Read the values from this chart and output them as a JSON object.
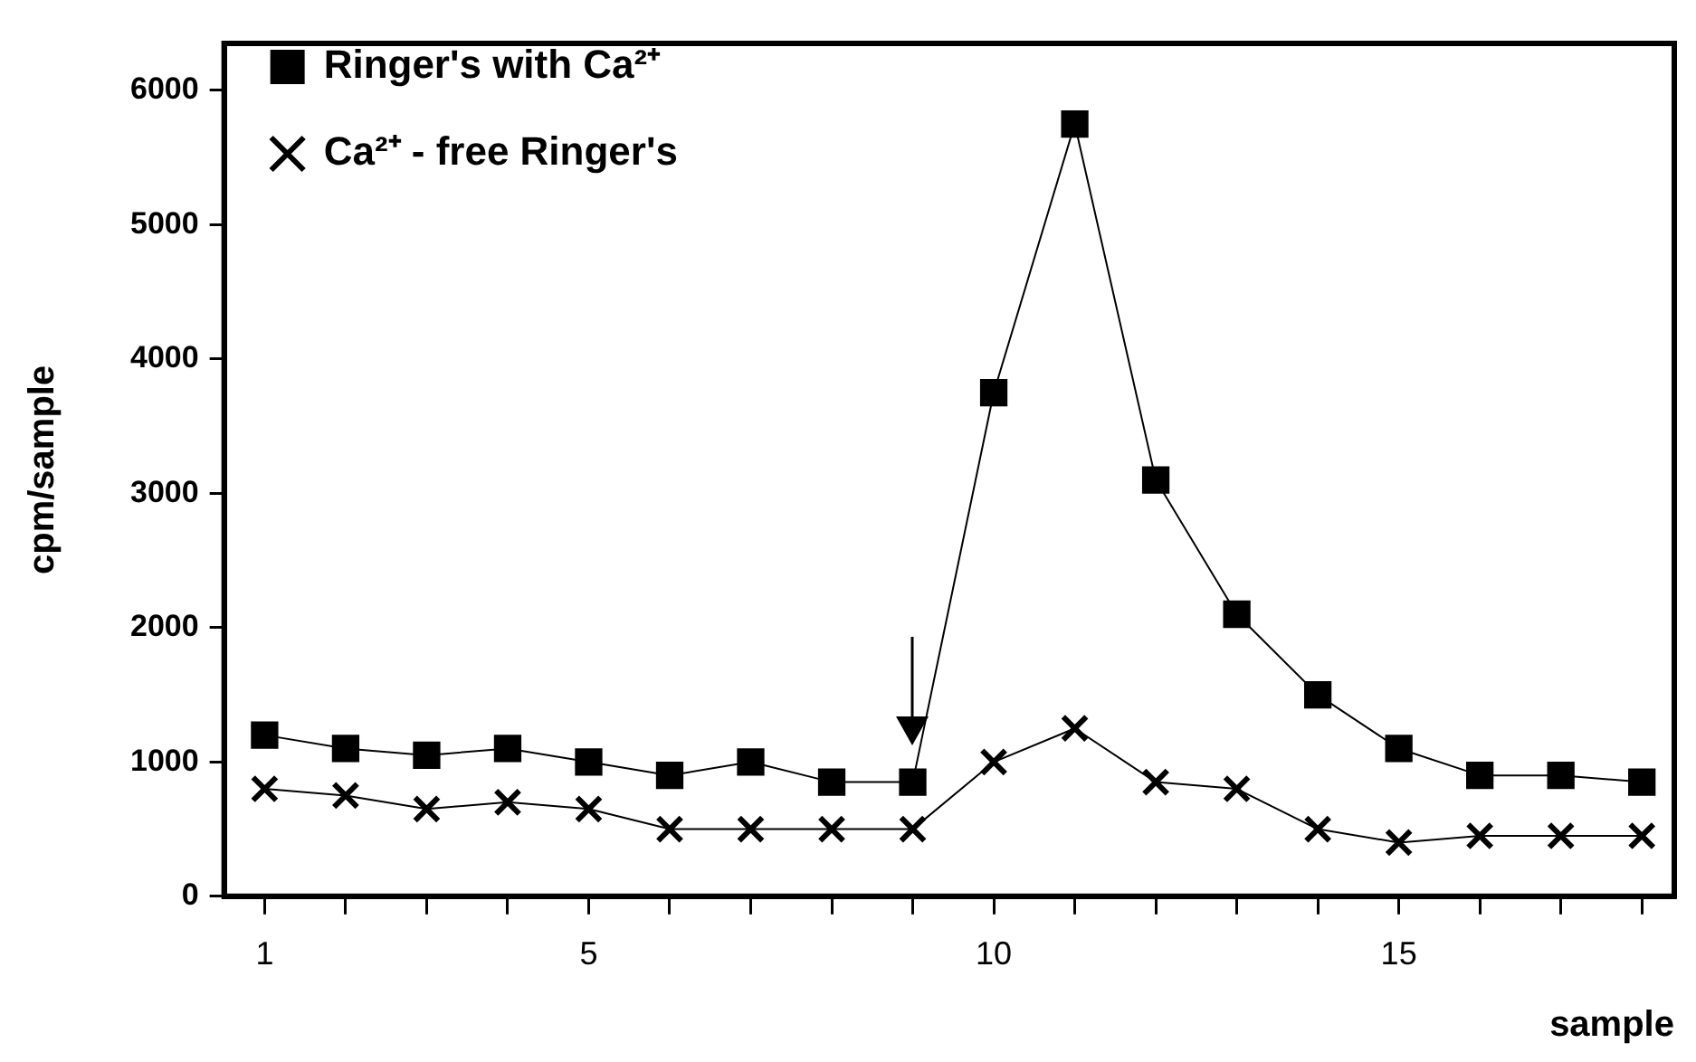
{
  "chart_data": {
    "type": "line",
    "xlabel": "sample",
    "ylabel": "cpm/sample",
    "x": [
      1,
      2,
      3,
      4,
      5,
      6,
      7,
      8,
      9,
      10,
      11,
      12,
      13,
      14,
      15,
      16,
      17,
      18
    ],
    "series": [
      {
        "name": "Ringer's with Ca²⁺",
        "color": "#000000",
        "marker": "square",
        "values": [
          1200,
          1100,
          1050,
          1100,
          1000,
          900,
          1000,
          850,
          850,
          3750,
          5750,
          3100,
          2100,
          1500,
          1100,
          900,
          900,
          850
        ]
      },
      {
        "name": "Ca²⁺ - free Ringer's",
        "color": "#000000",
        "marker": "cross",
        "values": [
          800,
          750,
          650,
          700,
          650,
          500,
          500,
          500,
          500,
          1000,
          1250,
          850,
          800,
          500,
          400,
          450,
          450,
          450
        ]
      }
    ],
    "xlim": [
      0.5,
      18.4
    ],
    "xticks": [
      {
        "value": 1,
        "label": "1"
      },
      {
        "value": 2,
        "label": null
      },
      {
        "value": 3,
        "label": null
      },
      {
        "value": 4,
        "label": null
      },
      5,
      {
        "value": 6,
        "label": null
      },
      {
        "value": 7,
        "label": null
      },
      {
        "value": 8,
        "label": null
      },
      {
        "value": 9,
        "label": null
      },
      10,
      {
        "value": 11,
        "label": null
      },
      {
        "value": 12,
        "label": null
      },
      {
        "value": 13,
        "label": null
      },
      {
        "value": 14,
        "label": null
      },
      15,
      {
        "value": 16,
        "label": null
      },
      {
        "value": 17,
        "label": null
      },
      {
        "value": 18,
        "label": null
      }
    ],
    "ylim": [
      0,
      6350
    ],
    "yticks": [
      0,
      1000,
      2000,
      3000,
      4000,
      5000,
      6000
    ],
    "grid": false,
    "legend": "top left",
    "line_style": "solid"
  }
}
